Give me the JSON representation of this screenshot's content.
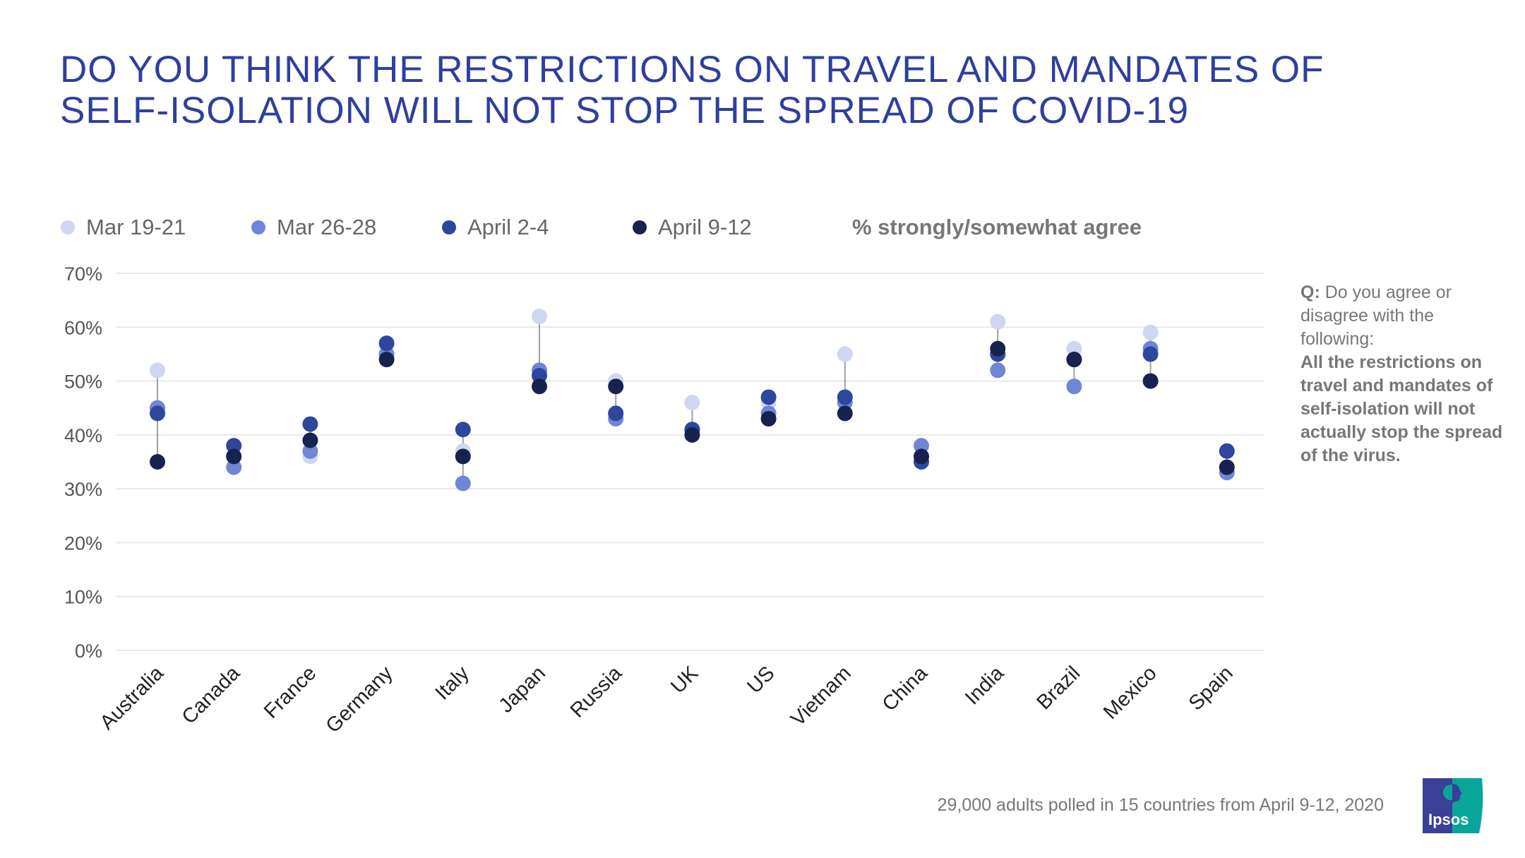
{
  "title": "DO YOU THINK THE RESTRICTIONS ON TRAVEL AND MANDATES OF SELF-ISOLATION WILL NOT STOP THE SPREAD OF COVID-19",
  "measure_label": "% strongly/somewhat agree",
  "question": {
    "prefix": "Q:",
    "text": "Do you agree or disagree with the following:",
    "statement": "All the restrictions on travel and mandates of self-isolation will not actually stop the spread of the virus."
  },
  "footnote": "29,000 adults polled in 15 countries from April 9-12, 2020",
  "logo_text": "Ipsos",
  "chart_data": {
    "type": "scatter",
    "title": "DO YOU THINK THE RESTRICTIONS ON TRAVEL AND MANDATES OF SELF-ISOLATION WILL NOT STOP THE SPREAD OF COVID-19",
    "xlabel": "",
    "ylabel": "% strongly/somewhat agree",
    "ylim": [
      0,
      70
    ],
    "yticks": [
      "0%",
      "10%",
      "20%",
      "30%",
      "40%",
      "50%",
      "60%",
      "70%"
    ],
    "grid": true,
    "legend": "top-left",
    "categories": [
      "Australia",
      "Canada",
      "France",
      "Germany",
      "Italy",
      "Japan",
      "Russia",
      "UK",
      "US",
      "Vietnam",
      "China",
      "India",
      "Brazil",
      "Mexico",
      "Spain"
    ],
    "series": [
      {
        "name": "Mar 19-21",
        "color": "#cfd6ef",
        "values": [
          52,
          36,
          36,
          55,
          37,
          62,
          50,
          46,
          46,
          55,
          36,
          61,
          56,
          59,
          34
        ]
      },
      {
        "name": "Mar 26-28",
        "color": "#6f86d6",
        "values": [
          45,
          34,
          37,
          55,
          31,
          52,
          43,
          41,
          44,
          46,
          38,
          52,
          49,
          56,
          33
        ]
      },
      {
        "name": "April 2-4",
        "color": "#2e479c",
        "values": [
          44,
          38,
          42,
          57,
          41,
          51,
          44,
          41,
          47,
          47,
          35,
          55,
          54,
          55,
          37
        ]
      },
      {
        "name": "April 9-12",
        "color": "#18224f",
        "values": [
          35,
          36,
          39,
          54,
          36,
          49,
          49,
          40,
          43,
          44,
          36,
          56,
          54,
          50,
          34
        ]
      }
    ]
  }
}
